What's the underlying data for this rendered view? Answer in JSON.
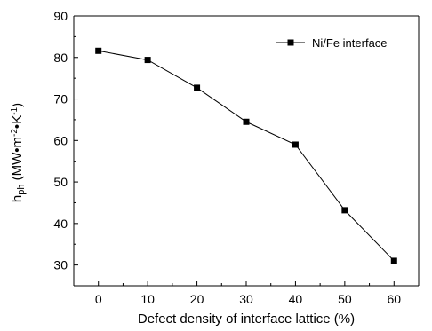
{
  "chart_data": {
    "type": "line",
    "x": [
      0,
      10,
      20,
      30,
      40,
      50,
      60
    ],
    "series": [
      {
        "name": "Ni/Fe interface",
        "values": [
          81.6,
          79.4,
          72.7,
          64.5,
          59.0,
          43.2,
          31.0
        ],
        "color": "#000000",
        "marker": "square"
      }
    ],
    "xlabel": "Defect density of interface lattice (%)",
    "ylabel": {
      "main": "h",
      "sub": "ph",
      "unit_open": " (MW•m",
      "exp1": "-2",
      "unit_mid": "•K",
      "exp2": "-1",
      "unit_close": ")"
    },
    "xlim": [
      -5,
      65
    ],
    "ylim": [
      25,
      90
    ],
    "xticks": [
      0,
      10,
      20,
      30,
      40,
      50,
      60
    ],
    "yticks": [
      30,
      40,
      50,
      60,
      70,
      80,
      90
    ],
    "grid": false,
    "legend_position": "top-right"
  }
}
